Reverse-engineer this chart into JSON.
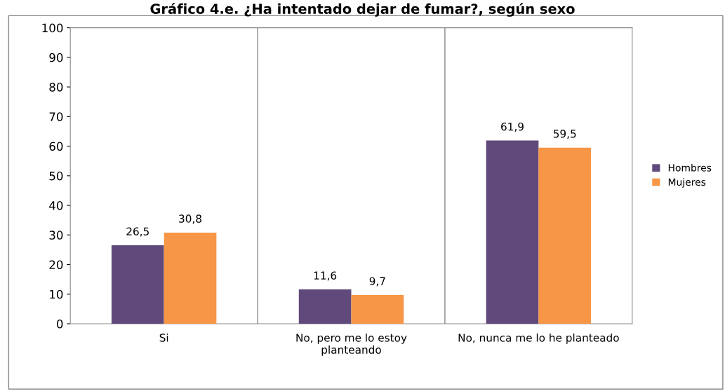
{
  "chart_data": {
    "type": "bar",
    "title": "Gráfico 4.e. ¿Ha intentado dejar de fumar?, según sexo",
    "categories": [
      "Si",
      "No, pero me lo estoy\nplanteando",
      "No, nunca me lo he planteado"
    ],
    "series": [
      {
        "name": "Hombres",
        "color": "#604a7b",
        "values": [
          26.5,
          11.6,
          61.9
        ],
        "value_labels": [
          "26,5",
          "11,6",
          "61,9"
        ]
      },
      {
        "name": "Mujeres",
        "color": "#f79646",
        "values": [
          30.8,
          9.7,
          59.5
        ],
        "value_labels": [
          "30,8",
          "9,7",
          "59,5"
        ]
      }
    ],
    "ylim": [
      0,
      100
    ],
    "yticks": [
      0,
      10,
      20,
      30,
      40,
      50,
      60,
      70,
      80,
      90,
      100
    ],
    "grid": "x",
    "legend": "right"
  }
}
